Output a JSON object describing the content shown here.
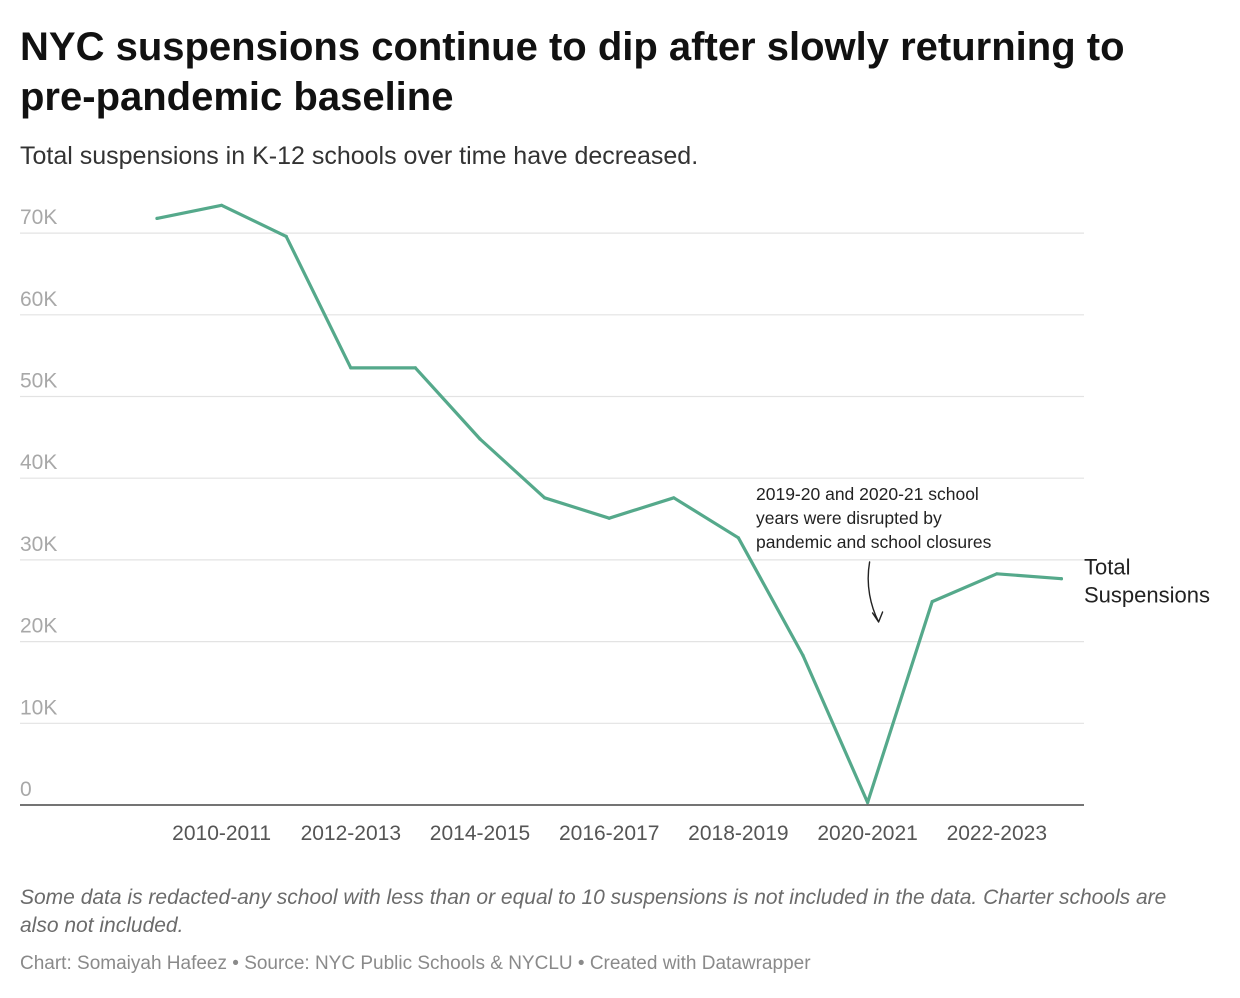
{
  "title": "NYC suspensions continue to dip after slowly returning to pre-pandemic baseline",
  "subtitle": "Total suspensions in K-12 schools over time have decreased.",
  "chart_data": {
    "type": "line",
    "x": [
      "2009-2010",
      "2010-2011",
      "2011-2012",
      "2012-2013",
      "2013-2014",
      "2014-2015",
      "2015-2016",
      "2016-2017",
      "2017-2018",
      "2018-2019",
      "2019-2020",
      "2020-2021",
      "2021-2022",
      "2022-2023",
      "2023-2024"
    ],
    "series": [
      {
        "name": "Total Suspensions",
        "color": "#55a98b",
        "values": [
          71800,
          73400,
          69600,
          53500,
          53500,
          44800,
          37600,
          35100,
          37600,
          32700,
          18300,
          300,
          24900,
          28300,
          27700
        ]
      }
    ],
    "x_tick_labels": [
      "2010-2011",
      "2012-2013",
      "2014-2015",
      "2016-2017",
      "2018-2019",
      "2020-2021",
      "2022-2023"
    ],
    "y_ticks": [
      0,
      10000,
      20000,
      30000,
      40000,
      50000,
      60000,
      70000
    ],
    "y_tick_labels": [
      "0",
      "10K",
      "20K",
      "30K",
      "40K",
      "50K",
      "60K",
      "70K"
    ],
    "ylim": [
      0,
      70000
    ],
    "grid": true,
    "legend": "direct label at line end",
    "annotation": {
      "lines": [
        "2019-20 and 2020-21 school",
        "years were disrupted by",
        "pandemic and school closures"
      ],
      "points_to": "2020-2021"
    },
    "xlabel": "",
    "ylabel": ""
  },
  "notes": "Some data is redacted-any school with less than or equal to 10 suspensions is not included in the data. Charter schools are also not included.",
  "credits": "Chart: Somaiyah Hafeez • Source: NYC Public Schools & NYCLU • Created with Datawrapper"
}
